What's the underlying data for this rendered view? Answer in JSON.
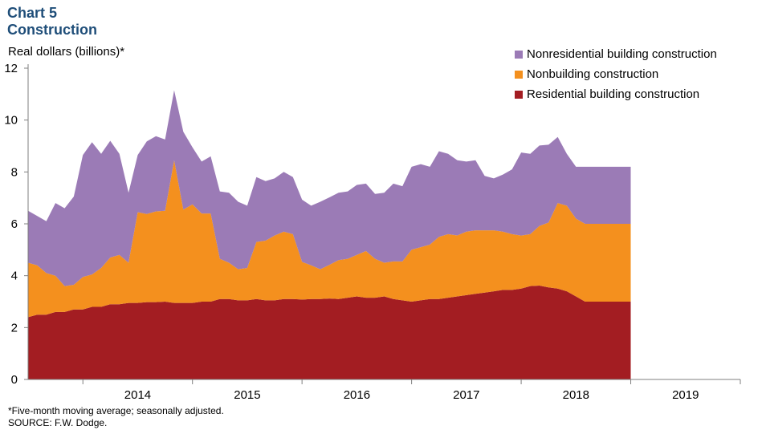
{
  "header": {
    "chart_label": "Chart 5",
    "title": "Construction",
    "y_unit": "Real dollars (billions)*"
  },
  "legend": {
    "items": [
      {
        "label": "Nonresidential building construction",
        "color": "#9b7bb6"
      },
      {
        "label": "Nonbuilding construction",
        "color": "#f4901e"
      },
      {
        "label": "Residential building construction",
        "color": "#a31d22"
      }
    ]
  },
  "footer": {
    "note": "*Five-month  moving average;  seasonally adjusted.",
    "source": "SOURCE:  F.W. Dodge."
  },
  "chart_data": {
    "type": "area",
    "stacked": true,
    "ylim": [
      0,
      12
    ],
    "yticks": [
      "0",
      "2",
      "4",
      "6",
      "8",
      "10",
      "12"
    ],
    "xlim": [
      "2013-07",
      "2019-12"
    ],
    "x_tick_labels": [
      "2014",
      "2015",
      "2016",
      "2017",
      "2018",
      "2019"
    ],
    "grid": false,
    "legend_position": "top-right",
    "x": [
      "2013-07",
      "2013-08",
      "2013-09",
      "2013-10",
      "2013-11",
      "2013-12",
      "2014-01",
      "2014-02",
      "2014-03",
      "2014-04",
      "2014-05",
      "2014-06",
      "2014-07",
      "2014-08",
      "2014-09",
      "2014-10",
      "2014-11",
      "2014-12",
      "2015-01",
      "2015-02",
      "2015-03",
      "2015-04",
      "2015-05",
      "2015-06",
      "2015-07",
      "2015-08",
      "2015-09",
      "2015-10",
      "2015-11",
      "2015-12",
      "2016-01",
      "2016-02",
      "2016-03",
      "2016-04",
      "2016-05",
      "2016-06",
      "2016-07",
      "2016-08",
      "2016-09",
      "2016-10",
      "2016-11",
      "2016-12",
      "2017-01",
      "2017-02",
      "2017-03",
      "2017-04",
      "2017-05",
      "2017-06",
      "2017-07",
      "2017-08",
      "2017-09",
      "2017-10",
      "2017-11",
      "2017-12",
      "2018-01",
      "2018-02",
      "2018-03",
      "2018-04",
      "2018-05",
      "2018-06",
      "2018-07",
      "2018-08",
      "2018-09",
      "2018-10",
      "2018-11",
      "2018-12",
      "2019-01"
    ],
    "series": [
      {
        "name": "Residential building construction",
        "color": "#a31d22",
        "values": [
          2.4,
          2.5,
          2.5,
          2.6,
          2.6,
          2.7,
          2.7,
          2.8,
          2.8,
          2.9,
          2.9,
          2.95,
          2.95,
          2.98,
          2.98,
          3.0,
          2.95,
          2.95,
          2.95,
          3.0,
          3.0,
          3.1,
          3.1,
          3.05,
          3.05,
          3.1,
          3.05,
          3.05,
          3.1,
          3.1,
          3.08,
          3.1,
          3.1,
          3.12,
          3.1,
          3.15,
          3.2,
          3.15,
          3.15,
          3.2,
          3.1,
          3.05,
          3.0,
          3.05,
          3.1,
          3.1,
          3.15,
          3.2,
          3.25,
          3.3,
          3.35,
          3.4,
          3.45,
          3.45,
          3.5,
          3.6,
          3.62,
          3.55,
          3.5,
          3.4,
          3.2,
          3.0,
          3.0,
          3.0,
          3.0,
          3.0,
          3.0
        ]
      },
      {
        "name": "Nonbuilding construction",
        "color": "#f4901e",
        "values": [
          2.1,
          1.9,
          1.6,
          1.4,
          1.0,
          0.95,
          1.25,
          1.25,
          1.5,
          1.8,
          1.9,
          1.55,
          3.5,
          3.4,
          3.5,
          3.5,
          5.5,
          3.6,
          3.8,
          3.4,
          3.4,
          1.55,
          1.4,
          1.2,
          1.25,
          2.2,
          2.3,
          2.5,
          2.6,
          2.5,
          1.45,
          1.3,
          1.15,
          1.3,
          1.5,
          1.5,
          1.6,
          1.8,
          1.5,
          1.3,
          1.45,
          1.5,
          2.0,
          2.05,
          2.1,
          2.4,
          2.45,
          2.35,
          2.45,
          2.45,
          2.4,
          2.35,
          2.25,
          2.15,
          2.05,
          2.0,
          2.3,
          2.5,
          3.3,
          3.3,
          3.0,
          3.0,
          3.0,
          3.0,
          3.0,
          3.0,
          3.0
        ]
      },
      {
        "name": "Nonresidential building construction",
        "color": "#9b7bb6",
        "values": [
          2.0,
          1.9,
          2.0,
          2.8,
          3.0,
          3.4,
          4.7,
          5.1,
          4.4,
          4.5,
          3.9,
          2.7,
          2.2,
          2.8,
          2.9,
          2.75,
          2.7,
          3.0,
          2.2,
          2.0,
          2.2,
          2.6,
          2.7,
          2.6,
          2.4,
          2.5,
          2.3,
          2.2,
          2.3,
          2.2,
          2.4,
          2.3,
          2.6,
          2.6,
          2.6,
          2.6,
          2.7,
          2.6,
          2.5,
          2.7,
          3.0,
          2.9,
          3.2,
          3.2,
          3.0,
          3.3,
          3.1,
          2.9,
          2.7,
          2.7,
          2.1,
          2.0,
          2.2,
          2.5,
          3.2,
          3.1,
          3.1,
          3.0,
          2.55,
          2.0,
          2.0,
          2.2,
          2.2,
          2.2,
          2.2,
          2.2,
          2.2
        ]
      }
    ]
  }
}
